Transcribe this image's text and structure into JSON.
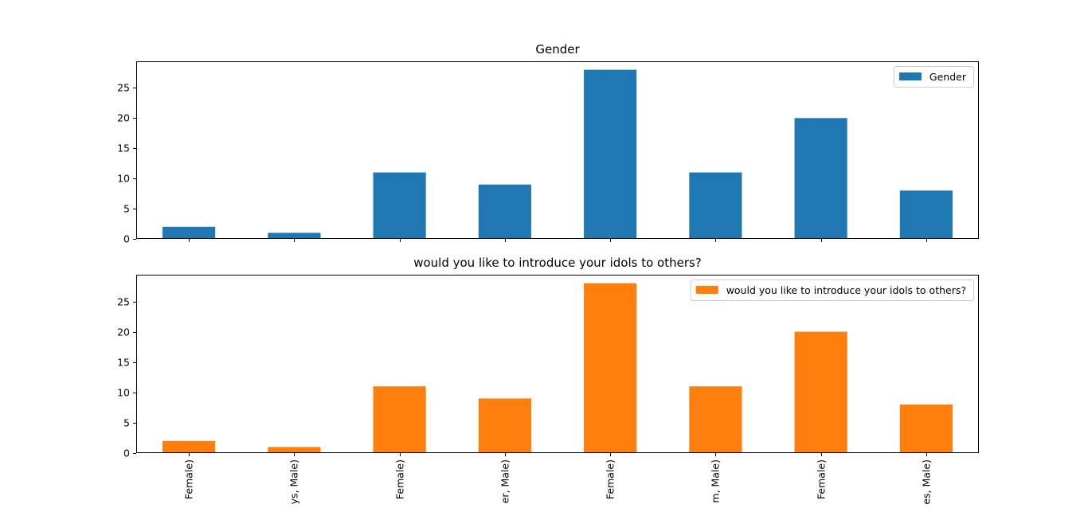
{
  "chart_data": [
    {
      "type": "bar",
      "title": "Gender",
      "categories": [
        "Female)",
        "ys, Male)",
        "Female)",
        "er, Male)",
        "Female)",
        "m, Male)",
        "Female)",
        "es, Male)"
      ],
      "series": [
        {
          "name": "Gender",
          "values": [
            2,
            1,
            11,
            9,
            28,
            11,
            20,
            8
          ],
          "color": "#1f77b4"
        }
      ],
      "ylim": [
        0,
        29.4
      ],
      "yticks": [
        0,
        5,
        10,
        15,
        20,
        25
      ],
      "show_xtick_labels": false,
      "legend": "top-right",
      "grid": false
    },
    {
      "type": "bar",
      "title": "would you like to introduce your idols to others?",
      "categories": [
        "Female)",
        "ys, Male)",
        "Female)",
        "er, Male)",
        "Female)",
        "m, Male)",
        "Female)",
        "es, Male)"
      ],
      "series": [
        {
          "name": "would you like to introduce your idols to others?",
          "values": [
            2,
            1,
            11,
            9,
            28,
            11,
            20,
            8
          ],
          "color": "#ff7f0e"
        }
      ],
      "ylim": [
        0,
        29.4
      ],
      "yticks": [
        0,
        5,
        10,
        15,
        20,
        25
      ],
      "show_xtick_labels": true,
      "legend": "top-right",
      "grid": false
    }
  ]
}
